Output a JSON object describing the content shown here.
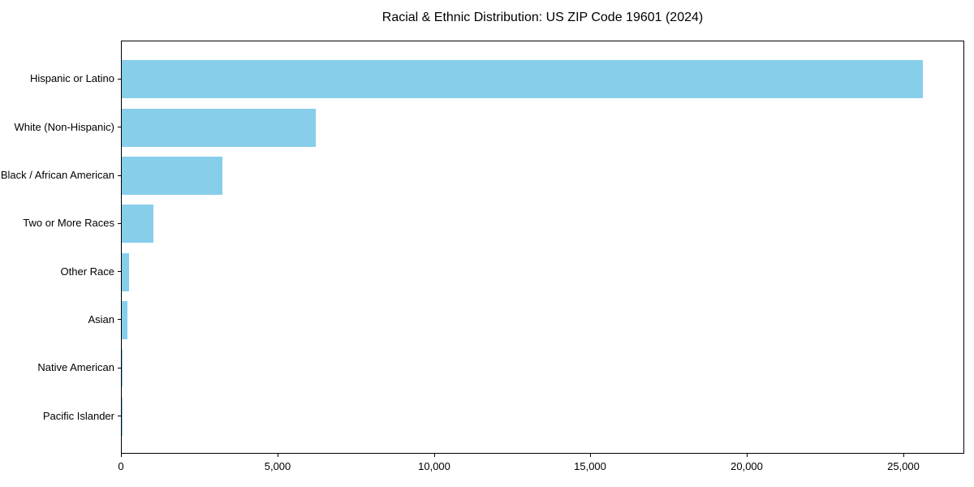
{
  "chart_data": {
    "type": "bar",
    "orientation": "horizontal",
    "title": "Racial & Ethnic Distribution: US ZIP Code 19601 (2024)",
    "xlabel": "",
    "ylabel": "",
    "categories": [
      "Hispanic or Latino",
      "White (Non-Hispanic)",
      "Black / African American",
      "Two or More Races",
      "Other Race",
      "Asian",
      "Native American",
      "Pacific Islander"
    ],
    "values": [
      25600,
      6190,
      3210,
      1020,
      240,
      175,
      20,
      8
    ],
    "xlim": [
      0,
      26950
    ],
    "xticks": [
      {
        "value": 0,
        "label": "0"
      },
      {
        "value": 5000,
        "label": "5,000"
      },
      {
        "value": 10000,
        "label": "10,000"
      },
      {
        "value": 15000,
        "label": "15,000"
      },
      {
        "value": 20000,
        "label": "20,000"
      },
      {
        "value": 25000,
        "label": "25,000"
      }
    ],
    "bar_color": "#87CEEB",
    "grid": false,
    "legend": null
  }
}
